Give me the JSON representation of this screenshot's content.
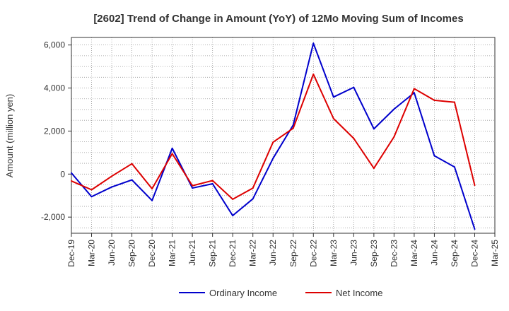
{
  "chart_data": {
    "type": "line",
    "title": "[2602]  Trend of Change in Amount (YoY) of 12Mo Moving Sum of Incomes",
    "xlabel": "",
    "ylabel": "Amount (million yen)",
    "categories": [
      "Dec-19",
      "Mar-20",
      "Jun-20",
      "Sep-20",
      "Dec-20",
      "Mar-21",
      "Jun-21",
      "Sep-21",
      "Dec-21",
      "Mar-22",
      "Jun-22",
      "Sep-22",
      "Dec-22",
      "Mar-23",
      "Jun-23",
      "Sep-23",
      "Dec-23",
      "Mar-24",
      "Jun-24",
      "Sep-24",
      "Dec-24",
      "Mar-25"
    ],
    "ylim": [
      -2750,
      6350
    ],
    "yticks": [
      -2000,
      0,
      2000,
      4000,
      6000
    ],
    "ytick_labels": [
      "-2,000",
      "0",
      "2,000",
      "4,000",
      "6,000"
    ],
    "grid": true,
    "legend_position": "bottom",
    "series": [
      {
        "name": "Ordinary Income",
        "color": "#0000cc",
        "values": [
          50,
          -1050,
          -600,
          -270,
          -1230,
          1200,
          -650,
          -450,
          -1930,
          -1150,
          730,
          2280,
          6080,
          3580,
          4030,
          2100,
          3020,
          3780,
          850,
          330,
          -2560,
          null
        ]
      },
      {
        "name": "Net Income",
        "color": "#dd0000",
        "values": [
          -320,
          -730,
          -100,
          480,
          -680,
          950,
          -540,
          -300,
          -1170,
          -650,
          1480,
          2130,
          4640,
          2580,
          1660,
          270,
          1730,
          3970,
          3430,
          3340,
          -520,
          null
        ]
      }
    ]
  }
}
